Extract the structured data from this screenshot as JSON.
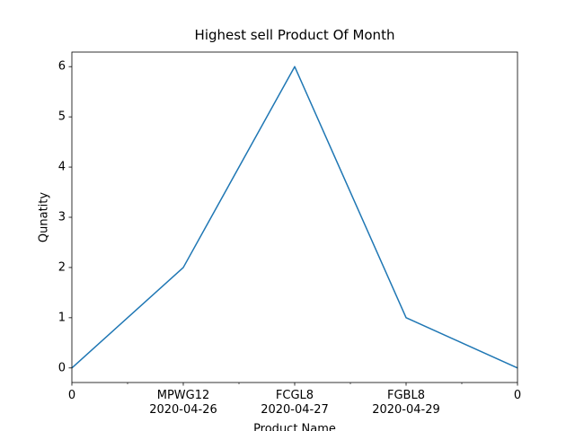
{
  "chart_data": {
    "type": "line",
    "title": "Highest sell Product Of Month",
    "x_label": "Product Name",
    "y_label": "Qunatity",
    "categories": [
      "0",
      "MPWG12\n2020-04-26",
      "FCGL8\n2020-04-27",
      "FGBL8\n2020-04-29",
      "0"
    ],
    "values": [
      0,
      2,
      6,
      1,
      0
    ],
    "color": "#1f77b4",
    "ylim": [
      -0.29,
      6.29
    ],
    "yticks": [
      0,
      1,
      2,
      3,
      4,
      5,
      6
    ],
    "grid": false
  }
}
